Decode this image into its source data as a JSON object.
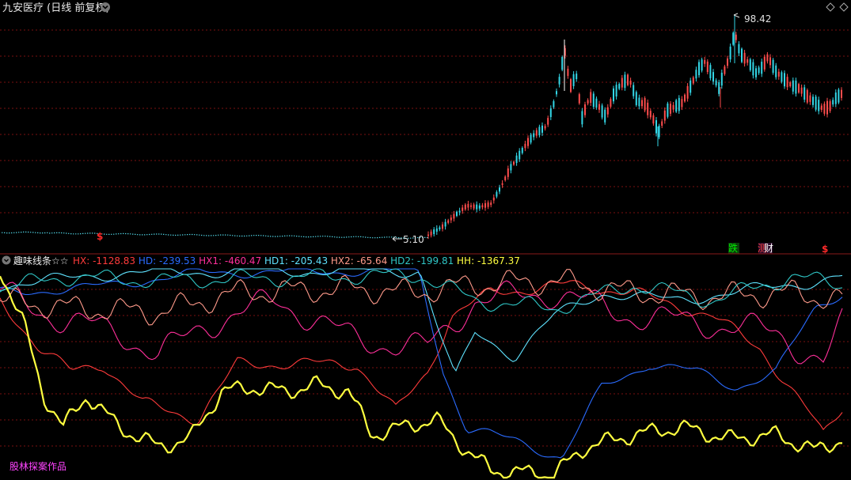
{
  "stock": {
    "title": "九安医疗 (日线 前复权)",
    "high_label": "98.42",
    "low_label": "5.10"
  },
  "markers": [
    {
      "text": "$",
      "color": "#ff2a2a"
    },
    {
      "text": "跌",
      "color": "#00ee00"
    },
    {
      "text": "测",
      "color": "#ff4444"
    },
    {
      "text": "财",
      "color": "#ffffff"
    },
    {
      "text": "$",
      "color": "#ff2a2a"
    }
  ],
  "indicator": {
    "name": "趣味线条",
    "stars": "☆☆",
    "values": [
      {
        "key": "HX",
        "text": "HX: -1128.83",
        "color": "#ff3b3b"
      },
      {
        "key": "HD",
        "text": "HD: -239.53",
        "color": "#2a6bff"
      },
      {
        "key": "HX1",
        "text": "HX1: -460.47",
        "color": "#ff2f9a"
      },
      {
        "key": "HD1",
        "text": "HD1: -205.43",
        "color": "#5fe3ff"
      },
      {
        "key": "HX2",
        "text": "HX2: -65.64",
        "color": "#ff9a8a"
      },
      {
        "key": "HD2",
        "text": "HD2: -199.81",
        "color": "#2fc6c6"
      },
      {
        "key": "HH",
        "text": "HH: -1367.37",
        "color": "#ffff40"
      }
    ]
  },
  "watermark": "股林探案作品",
  "icons": {
    "settings": "chevron-down-icon",
    "window": "diamond-icon"
  },
  "colors": {
    "up": "#ff4d4d",
    "down": "#33d6e6",
    "grid": "#7a1010",
    "background": "#000000"
  }
}
